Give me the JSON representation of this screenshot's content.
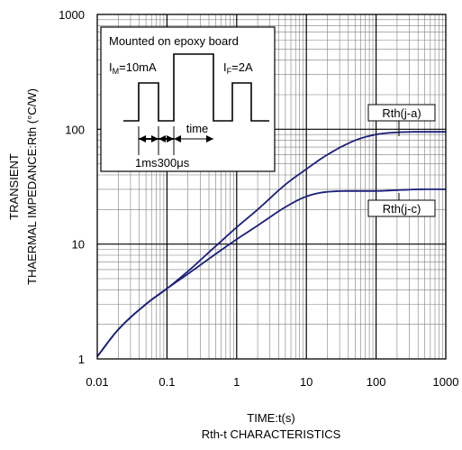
{
  "chart_data": {
    "type": "line",
    "title": "",
    "caption": "Rth-t CHARACTERISTICS",
    "xlabel": "TIME:t(s)",
    "ylabel_line1": "TRANSIENT",
    "ylabel_line2": "THAERMAL IMPEDANCE:Rth (°C/W)",
    "x_scale": "log",
    "y_scale": "log",
    "xlim": [
      0.01,
      1000
    ],
    "ylim": [
      1,
      1000
    ],
    "grid": true,
    "x_ticks": [
      "0.01",
      "0.1",
      "1",
      "10",
      "100",
      "1000"
    ],
    "y_ticks": [
      "1",
      "10",
      "100",
      "1000"
    ],
    "series": [
      {
        "name": "Rth(j-a)",
        "x": [
          0.01,
          0.02,
          0.05,
          0.1,
          0.2,
          0.5,
          1,
          2,
          5,
          10,
          20,
          50,
          100,
          200,
          500,
          1000
        ],
        "y": [
          1.05,
          1.8,
          3.0,
          4.1,
          5.8,
          9.6,
          14,
          20,
          33,
          45,
          60,
          80,
          90,
          94,
          95,
          95
        ]
      },
      {
        "name": "Rth(j-c)",
        "x": [
          0.01,
          0.02,
          0.05,
          0.1,
          0.2,
          0.5,
          1,
          2,
          5,
          10,
          20,
          50,
          100,
          200,
          500,
          1000
        ],
        "y": [
          1.05,
          1.8,
          3.0,
          4.1,
          5.5,
          8.2,
          11,
          14.5,
          21,
          26,
          28.5,
          29,
          29,
          29.5,
          30,
          30
        ]
      }
    ],
    "inset": {
      "title": "Mounted on epoxy board",
      "im_label": "I",
      "im_sub": "M",
      "im_value": "=10mA",
      "if_label": "I",
      "if_sub": "F",
      "if_value": "=2A",
      "time_label": "time",
      "dim1_label": "1ms",
      "dim2_label": "300",
      "dim2_unit": "μs"
    },
    "colors": {
      "series": "#1a1f7a",
      "frame": "#000000",
      "grid_major": "#000000",
      "grid_minor": "#7f7f7f"
    }
  }
}
